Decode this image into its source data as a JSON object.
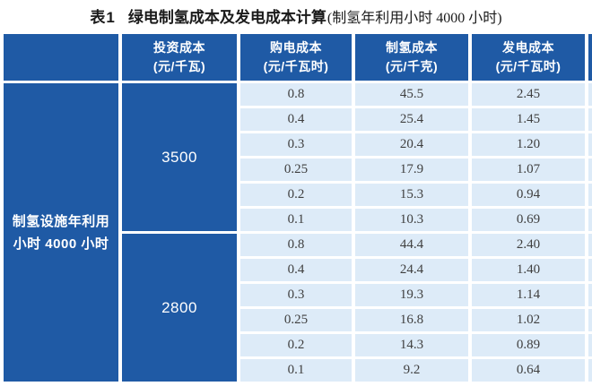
{
  "caption": {
    "prefix": "表1",
    "main": "绿电制氢成本及发电成本计算",
    "paren": "(制氢年利用小时 4000 小时)"
  },
  "table": {
    "row_label": {
      "line1": "制氢设施年利用",
      "line2": "小时 4000 小时"
    },
    "headers": [
      {
        "name": "投资成本",
        "unit": "(元/千瓦)"
      },
      {
        "name": "购电成本",
        "unit": "(元/千瓦时)"
      },
      {
        "name": "制氢成本",
        "unit": "(元/千克)"
      },
      {
        "name": "发电成本",
        "unit": "(元/千瓦时)"
      }
    ],
    "groups": [
      {
        "investment": "3500",
        "rows": [
          [
            "0.8",
            "45.5",
            "2.45"
          ],
          [
            "0.4",
            "25.4",
            "1.45"
          ],
          [
            "0.3",
            "20.4",
            "1.20"
          ],
          [
            "0.25",
            "17.9",
            "1.07"
          ],
          [
            "0.2",
            "15.3",
            "0.94"
          ],
          [
            "0.1",
            "10.3",
            "0.69"
          ]
        ]
      },
      {
        "investment": "2800",
        "rows": [
          [
            "0.8",
            "44.4",
            "2.40"
          ],
          [
            "0.4",
            "24.4",
            "1.40"
          ],
          [
            "0.3",
            "19.3",
            "1.14"
          ],
          [
            "0.25",
            "16.8",
            "1.02"
          ],
          [
            "0.2",
            "14.3",
            "0.89"
          ],
          [
            "0.1",
            "9.2",
            "0.64"
          ]
        ]
      }
    ]
  },
  "colors": {
    "header_blue": "#1F5AA5",
    "cell_light_blue": "#DDEBF8",
    "data_text": "#3F3F3F",
    "caption_text": "#1A1A1A",
    "background": "#FFFFFF"
  }
}
